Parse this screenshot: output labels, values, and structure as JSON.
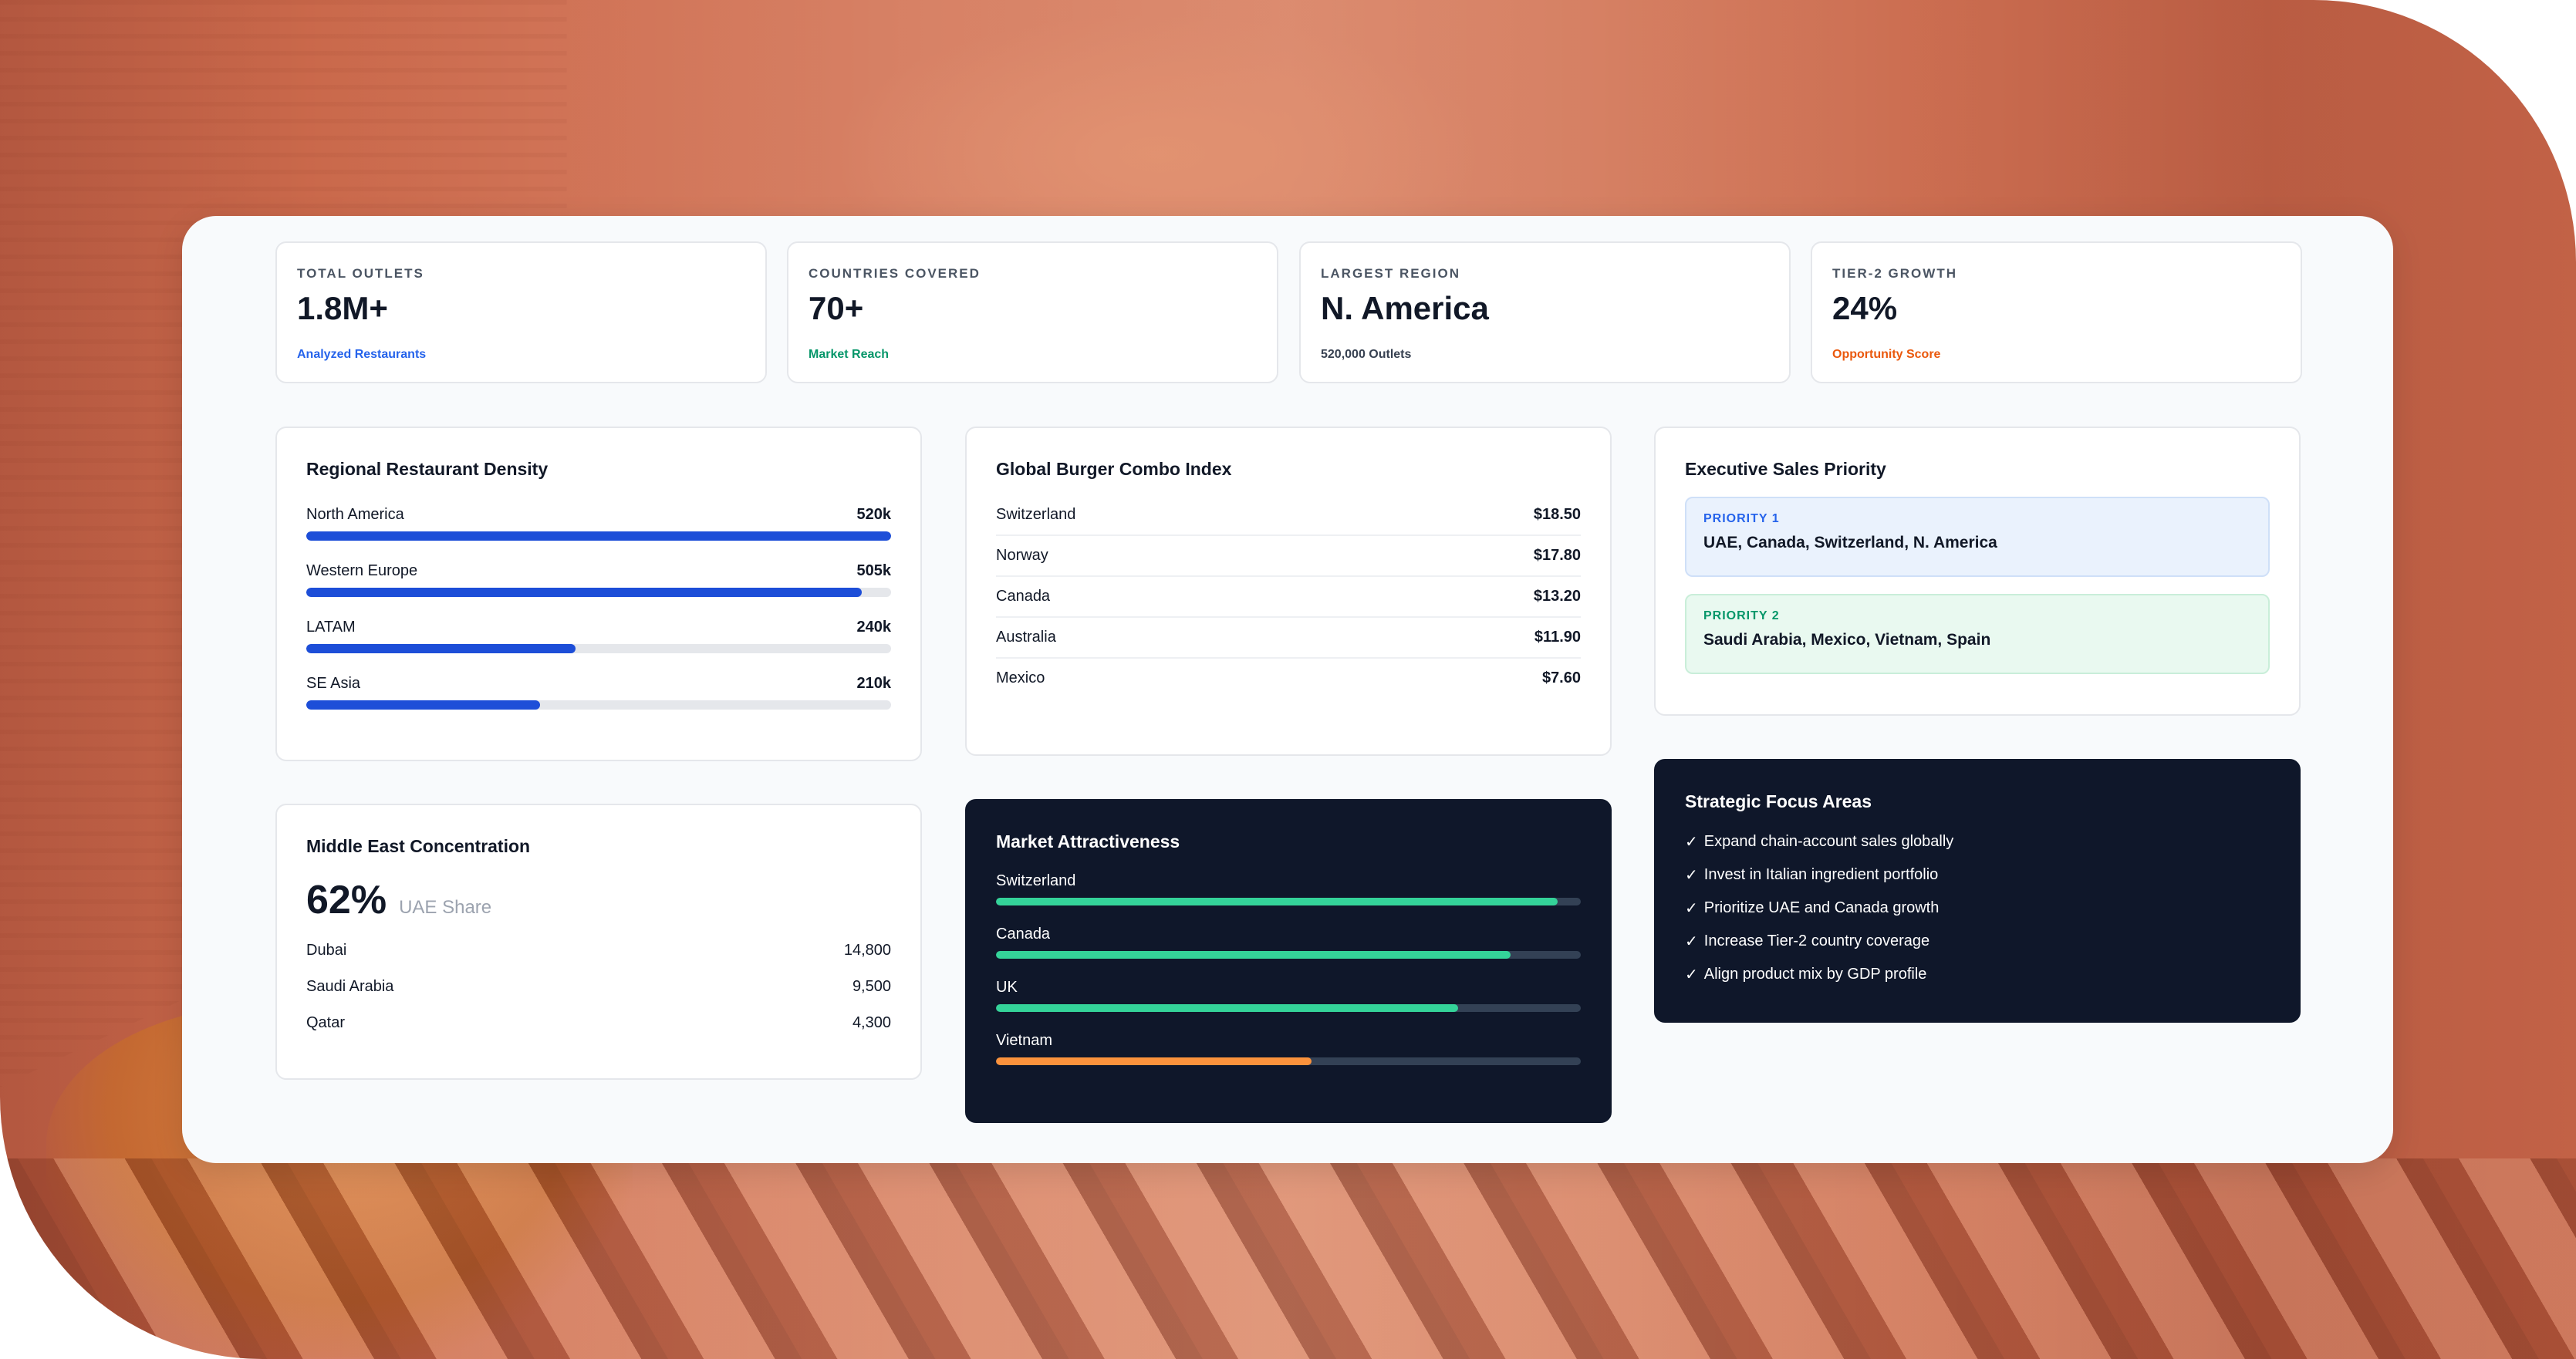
{
  "colors": {
    "primary_bar": "#1d4ed8",
    "green_bar": "#34d399",
    "orange_bar": "#fb923c",
    "dark_card": "#0f172a",
    "blue_text": "#2563eb",
    "green_text": "#059669",
    "orange_text": "#ea580c"
  },
  "kpis": [
    {
      "label": "TOTAL OUTLETS",
      "value": "1.8M+",
      "sub": "Analyzed Restaurants"
    },
    {
      "label": "COUNTRIES COVERED",
      "value": "70+",
      "sub": "Market Reach"
    },
    {
      "label": "LARGEST REGION",
      "value": "N. America",
      "sub": "520,000 Outlets"
    },
    {
      "label": "TIER-2 GROWTH",
      "value": "24%",
      "sub": "Opportunity Score"
    }
  ],
  "density": {
    "title": "Regional Restaurant Density",
    "rows": [
      {
        "name": "North America",
        "value": "520k",
        "fraction": 1.0
      },
      {
        "name": "Western Europe",
        "value": "505k",
        "fraction": 0.95
      },
      {
        "name": "LATAM",
        "value": "240k",
        "fraction": 0.46
      },
      {
        "name": "SE Asia",
        "value": "210k",
        "fraction": 0.4
      }
    ]
  },
  "burger": {
    "title": "Global Burger Combo Index",
    "rows": [
      {
        "name": "Switzerland",
        "value": "$18.50"
      },
      {
        "name": "Norway",
        "value": "$17.80"
      },
      {
        "name": "Canada",
        "value": "$13.20"
      },
      {
        "name": "Australia",
        "value": "$11.90"
      },
      {
        "name": "Mexico",
        "value": "$7.60"
      }
    ]
  },
  "priority": {
    "title": "Executive Sales Priority",
    "items": [
      {
        "label": "PRIORITY 1",
        "text": "UAE, Canada, Switzerland, N. America"
      },
      {
        "label": "PRIORITY 2",
        "text": "Saudi Arabia, Mexico, Vietnam, Spain"
      }
    ]
  },
  "middle_east": {
    "title": "Middle East Concentration",
    "stat": "62%",
    "stat_label": "UAE Share",
    "rows": [
      {
        "name": "Dubai",
        "value": "14,800"
      },
      {
        "name": "Saudi Arabia",
        "value": "9,500"
      },
      {
        "name": "Qatar",
        "value": "4,300"
      }
    ]
  },
  "attractiveness": {
    "title": "Market Attractiveness",
    "rows": [
      {
        "name": "Switzerland",
        "fraction": 0.96,
        "color": "#34d399"
      },
      {
        "name": "Canada",
        "fraction": 0.88,
        "color": "#34d399"
      },
      {
        "name": "UK",
        "fraction": 0.79,
        "color": "#34d399"
      },
      {
        "name": "Vietnam",
        "fraction": 0.54,
        "color": "#fb923c"
      }
    ]
  },
  "focus": {
    "title": "Strategic Focus Areas",
    "check": "✓",
    "items": [
      "Expand chain-account sales globally",
      "Invest in Italian ingredient portfolio",
      "Prioritize UAE and Canada growth",
      "Increase Tier-2 country coverage",
      "Align product mix by GDP profile"
    ]
  }
}
